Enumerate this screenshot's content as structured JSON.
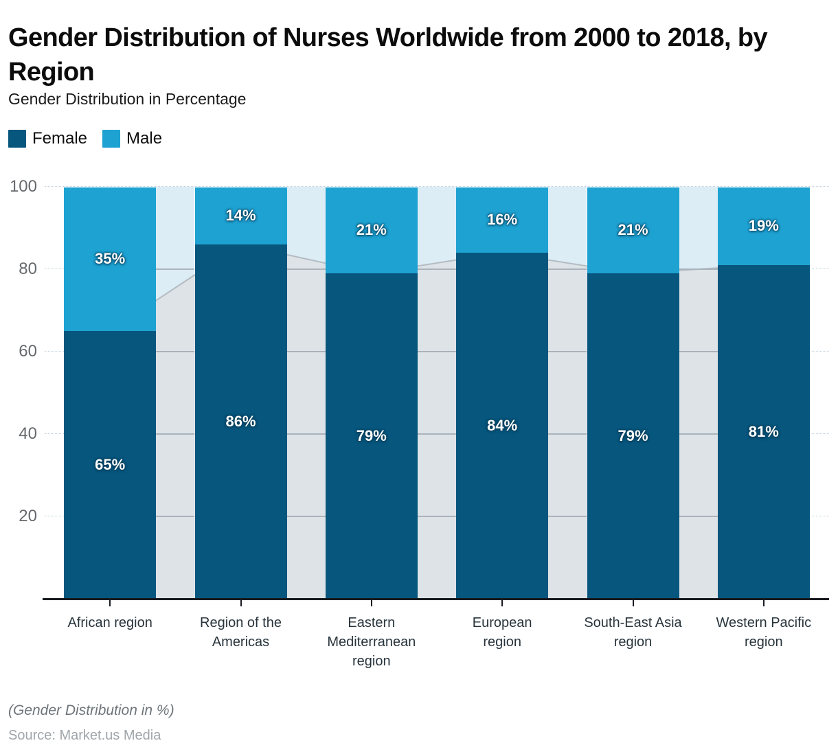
{
  "header": {
    "title": "Gender Distribution of Nurses Worldwide from 2000 to 2018, by Region",
    "subtitle": "Gender Distribution in Percentage"
  },
  "legend": [
    {
      "label": "Female",
      "color": "#07567D"
    },
    {
      "label": "Male",
      "color": "#1EA2D2"
    }
  ],
  "footer": {
    "note": "(Gender Distribution in %)",
    "source": "Source: Market.us Media"
  },
  "chart_data": {
    "type": "bar",
    "variant": "stacked-column",
    "title": "Gender Distribution of Nurses Worldwide from 2000 to 2018, by Region",
    "subtitle": "Gender Distribution in Percentage",
    "xlabel": "",
    "ylabel": "Gender Distribution in Percentage",
    "ylim": [
      0,
      100
    ],
    "yticks": [
      100,
      80,
      60,
      40,
      20
    ],
    "grid": "dotted-horizontal",
    "legend_position": "top-left",
    "categories": [
      "African region",
      "Region of the Americas",
      "Eastern Mediterranean region",
      "European region",
      "South-East Asia region",
      "Western Pacific region"
    ],
    "category_label_lines": [
      [
        "African region"
      ],
      [
        "Region of the",
        "Americas"
      ],
      [
        "Eastern",
        "Mediterranean",
        "region"
      ],
      [
        "European",
        "region"
      ],
      [
        "South-East Asia",
        "region"
      ],
      [
        "Western Pacific",
        "region"
      ]
    ],
    "series": [
      {
        "name": "Female",
        "color": "#07567D",
        "values": [
          65,
          86,
          79,
          84,
          79,
          81
        ],
        "labels": [
          "65%",
          "86%",
          "79%",
          "84%",
          "79%",
          "81%"
        ]
      },
      {
        "name": "Male",
        "color": "#1EA2D2",
        "values": [
          35,
          14,
          21,
          16,
          21,
          19
        ],
        "labels": [
          "35%",
          "14%",
          "21%",
          "16%",
          "21%",
          "19%"
        ]
      }
    ],
    "decorations": {
      "gap_band_color": "#DCEDF6",
      "silhouette": "gray area tracing Female series tops behind columns",
      "silhouette_fill": "#DDE1E6",
      "silhouette_line": "#B4BCC3",
      "grid_dotted_color": "#BFD0DA",
      "grid_solid_color": "#AAB3BB",
      "axis_line_color": "#16191D",
      "ytick_label_color": "#66696D",
      "xtick_label_color": "#28343C"
    }
  }
}
